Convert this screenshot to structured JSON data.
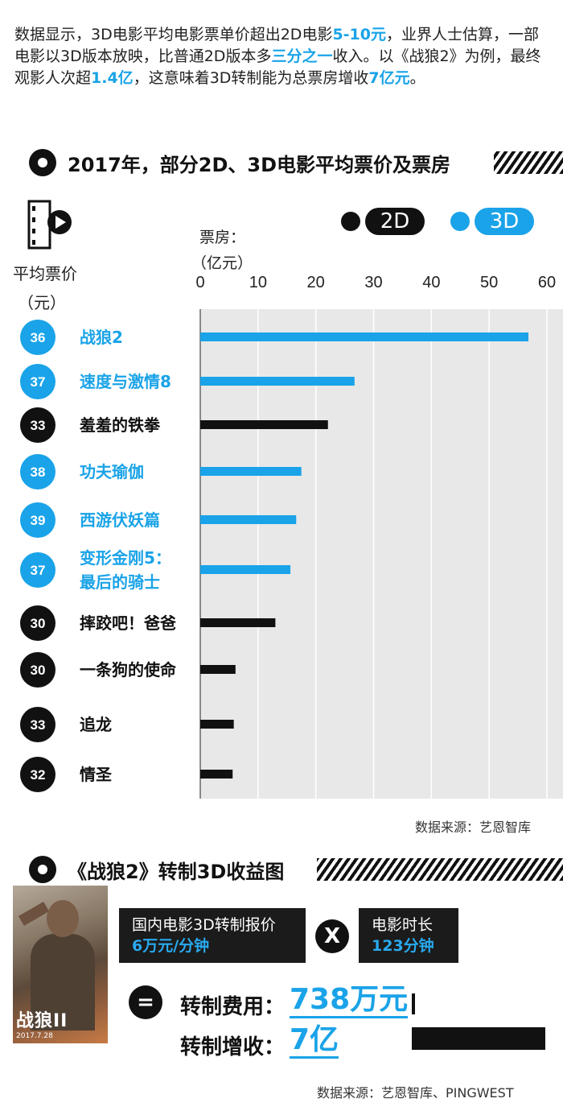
{
  "intro": {
    "p1": "数据显示，3D电影平均电影票单价超出2D电影",
    "hl1": "5-10元",
    "p2": "，业界人士估算，一部电影以3D版本放映，比普通2D版本多",
    "hl2": "三分之一",
    "p3": "收入。以《战狼2》为例，最终观影人次超",
    "hl3": "1.4亿",
    "p4": "，这意味着3D转制能为总票房增收",
    "hl4": "7亿元",
    "p5": "。"
  },
  "section1": {
    "title": "2017年，部分2D、3D电影平均票价及票房"
  },
  "legend": {
    "label_2d": "2D",
    "label_3d": "3D",
    "color_2d": "#111111",
    "color_3d": "#1aa3e8"
  },
  "labels": {
    "price_line1": "平均票价",
    "price_line2": "（元）",
    "box_line1": "票房：",
    "box_line2": "（亿元）"
  },
  "chart_data": {
    "type": "bar",
    "orientation": "horizontal",
    "xlabel": "票房：（亿元）",
    "ylabel": "平均票价（元）",
    "xlim": [
      0,
      60
    ],
    "xticks": [
      0,
      10,
      20,
      30,
      40,
      50,
      60
    ],
    "grid": true,
    "categories": [
      "战狼2",
      "速度与激情8",
      "羞羞的铁拳",
      "功夫瑜伽",
      "西游伏妖篇",
      "变形金刚5：最后的骑士",
      "摔跤吧！爸爸",
      "一条狗的使命",
      "追龙",
      "情圣"
    ],
    "name_lines": [
      [
        "战狼2"
      ],
      [
        "速度与激情8"
      ],
      [
        "羞羞的铁拳"
      ],
      [
        "功夫瑜伽"
      ],
      [
        "西游伏妖篇"
      ],
      [
        "变形金刚5：",
        "最后的骑士"
      ],
      [
        "摔跤吧！爸爸"
      ],
      [
        "一条狗的使命"
      ],
      [
        "追龙"
      ],
      [
        "情圣"
      ]
    ],
    "values": [
      56.8,
      26.7,
      22.1,
      17.5,
      16.6,
      15.6,
      13.0,
      6.1,
      5.8,
      5.6
    ],
    "avg_price": [
      36,
      37,
      33,
      38,
      39,
      37,
      30,
      30,
      33,
      32
    ],
    "format": [
      "3D",
      "3D",
      "2D",
      "3D",
      "3D",
      "3D",
      "2D",
      "2D",
      "2D",
      "2D"
    ]
  },
  "source1": "数据来源：艺恩智库",
  "section2": {
    "title": "《战狼2》转制3D收益图"
  },
  "poster": {
    "title": "战狼II",
    "date": "2017.7.28"
  },
  "calc": {
    "price_label": "国内电影3D转制报价",
    "price_value": "6万元/分钟",
    "times": "X",
    "duration_label": "电影时长",
    "duration_value": "123分钟",
    "equals": "=",
    "cost_label": "转制费用：",
    "cost_value": "738万元",
    "gain_label": "转制增收：",
    "gain_value": "7亿"
  },
  "source2": "数据来源：艺恩智库、PINGWEST"
}
